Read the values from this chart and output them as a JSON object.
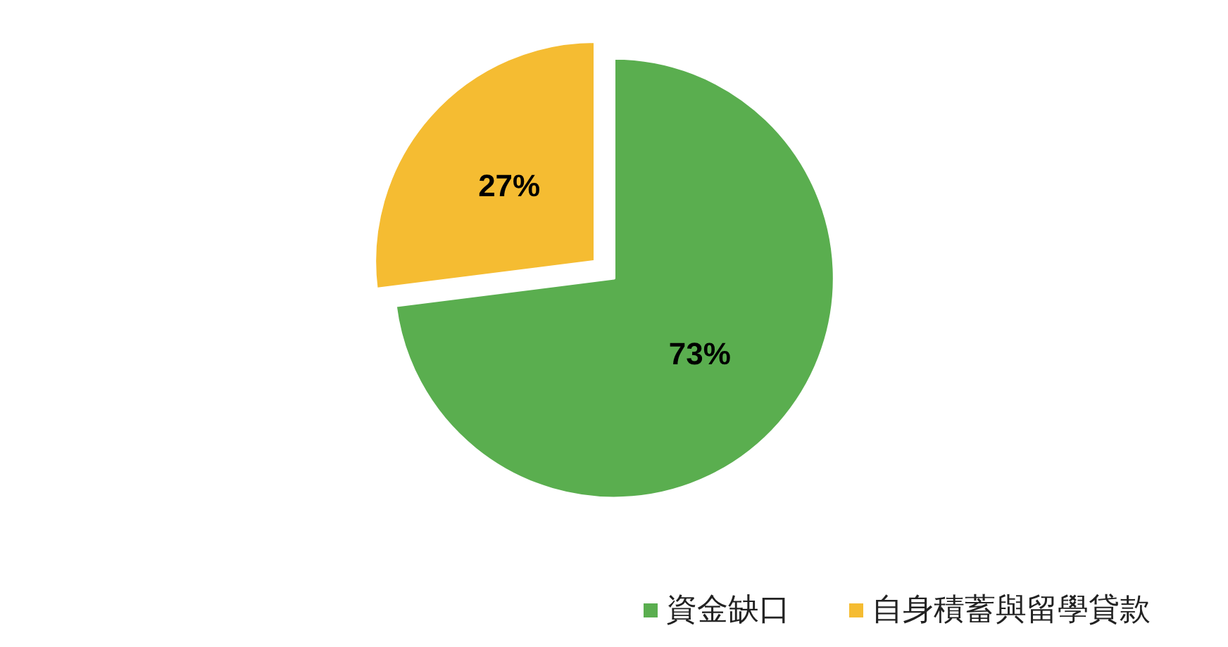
{
  "chart_data": {
    "type": "pie",
    "categories": [
      "資金缺口",
      "自身積蓄與留學貸款"
    ],
    "values": [
      73,
      27
    ],
    "colors": [
      "#5aae4f",
      "#f5bc32"
    ],
    "value_labels": [
      "73%",
      "27%"
    ],
    "legend": "bottom right"
  }
}
